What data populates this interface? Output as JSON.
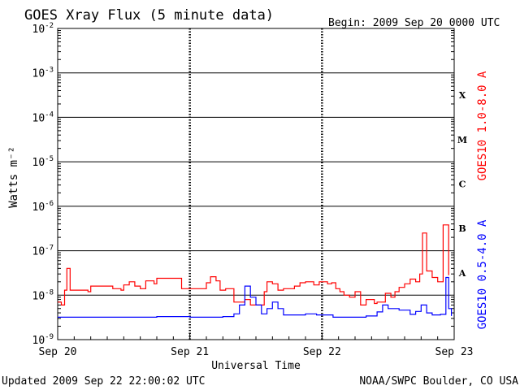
{
  "title": "GOES Xray Flux (5 minute data)",
  "begin_label": "Begin:  2009 Sep 20 0000 UTC",
  "updated_label": "Updated 2009 Sep 22 22:00:02 UTC",
  "credit_label": "NOAA/SWPC Boulder, CO USA",
  "chart_data": {
    "type": "line",
    "title": "GOES Xray Flux (5 minute data)",
    "xlabel": "Universal Time",
    "ylabel": "Watts m⁻²",
    "y_scale": "log",
    "ylim": [
      1e-09,
      0.01
    ],
    "y_ticks": [
      {
        "mantissa": "10",
        "exponent": "-2",
        "value": 0.01
      },
      {
        "mantissa": "10",
        "exponent": "-3",
        "value": 0.001
      },
      {
        "mantissa": "10",
        "exponent": "-4",
        "value": 0.0001
      },
      {
        "mantissa": "10",
        "exponent": "-5",
        "value": 1e-05
      },
      {
        "mantissa": "10",
        "exponent": "-6",
        "value": 1e-06
      },
      {
        "mantissa": "10",
        "exponent": "-7",
        "value": 1e-07
      },
      {
        "mantissa": "10",
        "exponent": "-8",
        "value": 1e-08
      },
      {
        "mantissa": "10",
        "exponent": "-9",
        "value": 1e-09
      }
    ],
    "xlim": [
      "2009-09-20 00:00",
      "2009-09-23 00:00"
    ],
    "x_ticks": [
      {
        "label": "Sep 20",
        "x": "2009-09-20 00:00"
      },
      {
        "label": "Sep 21",
        "x": "2009-09-21 00:00"
      },
      {
        "label": "Sep 22",
        "x": "2009-09-22 00:00"
      },
      {
        "label": "Sep 23",
        "x": "2009-09-23 00:00"
      }
    ],
    "flare_classes": [
      {
        "label": "X",
        "value": 0.0001
      },
      {
        "label": "M",
        "value": 1e-05
      },
      {
        "label": "C",
        "value": 1e-06
      },
      {
        "label": "B",
        "value": 1e-07
      },
      {
        "label": "A",
        "value": 1e-08
      }
    ],
    "grid": "horizontal lines at each decade",
    "series": [
      {
        "name": "GOES10 1.0-8.0 A",
        "color": "#ff0000",
        "points": [
          [
            "2009-09-20 00:00",
            7e-09
          ],
          [
            "2009-09-20 00:40",
            6e-09
          ],
          [
            "2009-09-20 01:15",
            1.3e-08
          ],
          [
            "2009-09-20 01:40",
            4e-08
          ],
          [
            "2009-09-20 02:15",
            1.3e-08
          ],
          [
            "2009-09-20 05:30",
            1.2e-08
          ],
          [
            "2009-09-20 06:00",
            1.6e-08
          ],
          [
            "2009-09-20 09:30",
            1.6e-08
          ],
          [
            "2009-09-20 10:00",
            1.4e-08
          ],
          [
            "2009-09-20 11:30",
            1.3e-08
          ],
          [
            "2009-09-20 12:00",
            1.7e-08
          ],
          [
            "2009-09-20 13:00",
            2e-08
          ],
          [
            "2009-09-20 14:00",
            1.6e-08
          ],
          [
            "2009-09-20 15:00",
            1.4e-08
          ],
          [
            "2009-09-20 16:00",
            2.1e-08
          ],
          [
            "2009-09-20 17:30",
            1.8e-08
          ],
          [
            "2009-09-20 18:00",
            2.4e-08
          ],
          [
            "2009-09-20 22:00",
            2.4e-08
          ],
          [
            "2009-09-20 22:30",
            1.4e-08
          ],
          [
            "2009-09-21 02:30",
            1.4e-08
          ],
          [
            "2009-09-21 03:00",
            1.9e-08
          ],
          [
            "2009-09-21 03:45",
            2.6e-08
          ],
          [
            "2009-09-21 04:45",
            2.1e-08
          ],
          [
            "2009-09-21 05:30",
            1.3e-08
          ],
          [
            "2009-09-21 06:30",
            1.4e-08
          ],
          [
            "2009-09-21 08:00",
            7e-09
          ],
          [
            "2009-09-21 10:00",
            8e-09
          ],
          [
            "2009-09-21 11:00",
            6e-09
          ],
          [
            "2009-09-21 13:30",
            1.2e-08
          ],
          [
            "2009-09-21 14:00",
            2e-08
          ],
          [
            "2009-09-21 15:00",
            1.8e-08
          ],
          [
            "2009-09-21 16:00",
            1.3e-08
          ],
          [
            "2009-09-21 17:00",
            1.4e-08
          ],
          [
            "2009-09-21 19:00",
            1.6e-08
          ],
          [
            "2009-09-21 20:00",
            1.9e-08
          ],
          [
            "2009-09-21 21:00",
            2e-08
          ],
          [
            "2009-09-21 22:30",
            1.7e-08
          ],
          [
            "2009-09-21 23:30",
            2e-08
          ],
          [
            "2009-09-22 01:00",
            1.8e-08
          ],
          [
            "2009-09-22 01:45",
            1.9e-08
          ],
          [
            "2009-09-22 02:30",
            1.4e-08
          ],
          [
            "2009-09-22 03:15",
            1.2e-08
          ],
          [
            "2009-09-22 04:00",
            1e-08
          ],
          [
            "2009-09-22 05:00",
            9e-09
          ],
          [
            "2009-09-22 06:00",
            1.2e-08
          ],
          [
            "2009-09-22 07:00",
            6e-09
          ],
          [
            "2009-09-22 08:00",
            8e-09
          ],
          [
            "2009-09-22 09:30",
            6.5e-09
          ],
          [
            "2009-09-22 10:00",
            7e-09
          ],
          [
            "2009-09-22 11:30",
            1.1e-08
          ],
          [
            "2009-09-22 12:30",
            9e-09
          ],
          [
            "2009-09-22 13:15",
            1.2e-08
          ],
          [
            "2009-09-22 14:00",
            1.5e-08
          ],
          [
            "2009-09-22 15:00",
            1.8e-08
          ],
          [
            "2009-09-22 16:00",
            2.3e-08
          ],
          [
            "2009-09-22 17:00",
            2e-08
          ],
          [
            "2009-09-22 17:45",
            3e-08
          ],
          [
            "2009-09-22 18:15",
            2.5e-07
          ],
          [
            "2009-09-22 19:00",
            3.5e-08
          ],
          [
            "2009-09-22 20:00",
            2.5e-08
          ],
          [
            "2009-09-22 21:00",
            2e-08
          ],
          [
            "2009-09-22 22:00",
            3.8e-07
          ],
          [
            "2009-09-22 23:00",
            2.8e-08
          ]
        ]
      },
      {
        "name": "GOES10 0.5-4.0 A",
        "color": "#0000ff",
        "points": [
          [
            "2009-09-20 00:00",
            3.2e-09
          ],
          [
            "2009-09-20 06:00",
            3.2e-09
          ],
          [
            "2009-09-20 12:00",
            3.2e-09
          ],
          [
            "2009-09-20 18:00",
            3.3e-09
          ],
          [
            "2009-09-21 00:00",
            3.2e-09
          ],
          [
            "2009-09-21 06:00",
            3.3e-09
          ],
          [
            "2009-09-21 08:00",
            3.8e-09
          ],
          [
            "2009-09-21 09:00",
            6e-09
          ],
          [
            "2009-09-21 10:00",
            1.6e-08
          ],
          [
            "2009-09-21 11:00",
            9e-09
          ],
          [
            "2009-09-21 12:00",
            6e-09
          ],
          [
            "2009-09-21 13:00",
            3.8e-09
          ],
          [
            "2009-09-21 14:00",
            5e-09
          ],
          [
            "2009-09-21 15:00",
            7e-09
          ],
          [
            "2009-09-21 16:00",
            5e-09
          ],
          [
            "2009-09-21 17:00",
            3.6e-09
          ],
          [
            "2009-09-21 19:00",
            3.6e-09
          ],
          [
            "2009-09-21 21:00",
            3.8e-09
          ],
          [
            "2009-09-21 23:00",
            3.6e-09
          ],
          [
            "2009-09-22 02:00",
            3.2e-09
          ],
          [
            "2009-09-22 06:00",
            3.2e-09
          ],
          [
            "2009-09-22 08:00",
            3.4e-09
          ],
          [
            "2009-09-22 10:00",
            4.2e-09
          ],
          [
            "2009-09-22 11:00",
            6e-09
          ],
          [
            "2009-09-22 12:00",
            5e-09
          ],
          [
            "2009-09-22 14:00",
            4.6e-09
          ],
          [
            "2009-09-22 16:00",
            3.7e-09
          ],
          [
            "2009-09-22 17:00",
            4.3e-09
          ],
          [
            "2009-09-22 18:00",
            6e-09
          ],
          [
            "2009-09-22 19:00",
            4e-09
          ],
          [
            "2009-09-22 20:00",
            3.6e-09
          ],
          [
            "2009-09-22 21:30",
            3.7e-09
          ],
          [
            "2009-09-22 22:30",
            2.5e-08
          ],
          [
            "2009-09-22 23:00",
            5e-09
          ],
          [
            "2009-09-22 23:30",
            3.4e-09
          ]
        ]
      }
    ]
  }
}
